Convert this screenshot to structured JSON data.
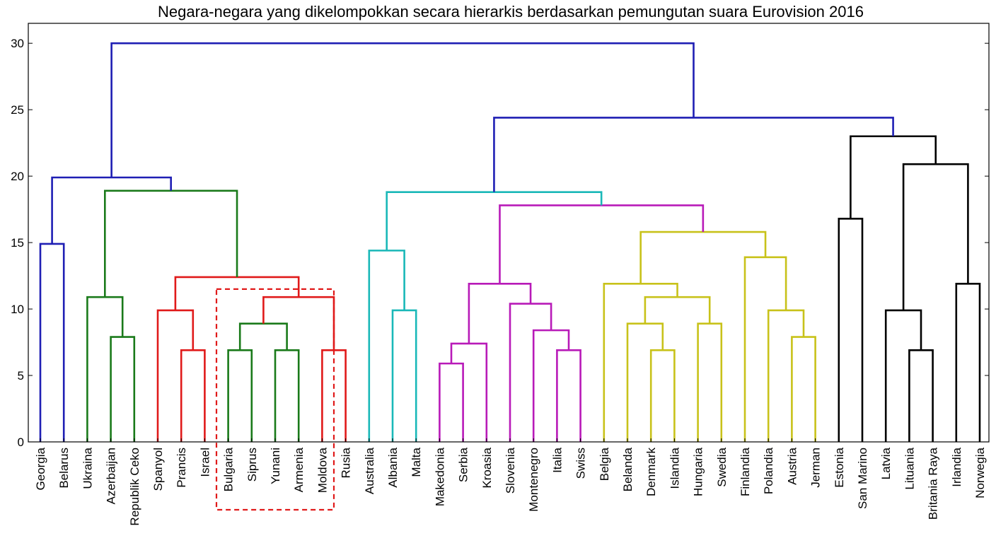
{
  "chart_data": {
    "type": "dendrogram",
    "title": "Negara-negara yang dikelompokkan secara hierarkis berdasarkan pemungutan suara Eurovision 2016",
    "xlabel": "",
    "ylabel": "",
    "ylim": [
      0,
      31.5
    ],
    "yticks": [
      0,
      5,
      10,
      15,
      20,
      25,
      30
    ],
    "grid": false,
    "leaves": [
      "Georgia",
      "Belarus",
      "Ukraina",
      "Azerbaijan",
      "Republik Ceko",
      "Spanyol",
      "Prancis",
      "Israel",
      "Bulgaria",
      "Siprus",
      "Yunani",
      "Armenia",
      "Moldova",
      "Rusia",
      "Australia",
      "Albania",
      "Malta",
      "Makedonia",
      "Serbia",
      "Kroasia",
      "Slovenia",
      "Montenegro",
      "Italia",
      "Swiss",
      "Belgia",
      "Belanda",
      "Denmark",
      "Islandia",
      "Hungaria",
      "Swedia",
      "Finlandia",
      "Polandia",
      "Austria",
      "Jerman",
      "Estonia",
      "San Marino",
      "Latvia",
      "Lituania",
      "Britania Raya",
      "Irlandia",
      "Norwegia"
    ],
    "merges": [
      {
        "a": "Georgia",
        "b": "Belarus",
        "height": 14.9,
        "color": "#1f1fb4"
      },
      {
        "a": "Azerbaijan",
        "b": "Republik Ceko",
        "height": 7.9,
        "color": "#1a7a1a"
      },
      {
        "a": "Ukraina",
        "b": 1,
        "height": 10.9,
        "color": "#1a7a1a"
      },
      {
        "a": "Prancis",
        "b": "Israel",
        "height": 6.9,
        "color": "#e01a1a"
      },
      {
        "a": "Spanyol",
        "b": 3,
        "height": 9.9,
        "color": "#e01a1a"
      },
      {
        "a": "Bulgaria",
        "b": "Siprus",
        "height": 6.9,
        "color": "#1a7a1a"
      },
      {
        "a": "Yunani",
        "b": "Armenia",
        "height": 6.9,
        "color": "#1a7a1a"
      },
      {
        "a": 5,
        "b": 6,
        "height": 8.9,
        "color": "#1a7a1a"
      },
      {
        "a": "Moldova",
        "b": "Rusia",
        "height": 6.9,
        "color": "#e01a1a"
      },
      {
        "a": 7,
        "b": 8,
        "height": 10.9,
        "color": "#e01a1a"
      },
      {
        "a": 4,
        "b": 9,
        "height": 12.4,
        "color": "#e01a1a"
      },
      {
        "a": 2,
        "b": 10,
        "height": 18.9,
        "color": "#1a7a1a"
      },
      {
        "a": 0,
        "b": 11,
        "height": 19.9,
        "color": "#1f1fb4"
      },
      {
        "a": "Albania",
        "b": "Malta",
        "height": 9.9,
        "color": "#1ab8b8"
      },
      {
        "a": "Australia",
        "b": 13,
        "height": 14.4,
        "color": "#1ab8b8"
      },
      {
        "a": "Makedonia",
        "b": "Serbia",
        "height": 5.9,
        "color": "#b81ab8"
      },
      {
        "a": 15,
        "b": "Kroasia",
        "height": 7.4,
        "color": "#b81ab8"
      },
      {
        "a": "Italia",
        "b": "Swiss",
        "height": 6.9,
        "color": "#b81ab8"
      },
      {
        "a": "Montenegro",
        "b": 17,
        "height": 8.4,
        "color": "#b81ab8"
      },
      {
        "a": "Slovenia",
        "b": 18,
        "height": 10.4,
        "color": "#b81ab8"
      },
      {
        "a": 16,
        "b": 19,
        "height": 11.9,
        "color": "#b81ab8"
      },
      {
        "a": "Denmark",
        "b": "Islandia",
        "height": 6.9,
        "color": "#c8c21a"
      },
      {
        "a": "Belanda",
        "b": 21,
        "height": 8.9,
        "color": "#c8c21a"
      },
      {
        "a": "Hungaria",
        "b": "Swedia",
        "height": 8.9,
        "color": "#c8c21a"
      },
      {
        "a": 22,
        "b": 23,
        "height": 10.9,
        "color": "#c8c21a"
      },
      {
        "a": "Belgia",
        "b": 24,
        "height": 11.9,
        "color": "#c8c21a"
      },
      {
        "a": "Austria",
        "b": "Jerman",
        "height": 7.9,
        "color": "#c8c21a"
      },
      {
        "a": "Polandia",
        "b": 26,
        "height": 9.9,
        "color": "#c8c21a"
      },
      {
        "a": "Finlandia",
        "b": 27,
        "height": 13.9,
        "color": "#c8c21a"
      },
      {
        "a": 25,
        "b": 28,
        "height": 15.8,
        "color": "#c8c21a"
      },
      {
        "a": 20,
        "b": 29,
        "height": 17.8,
        "color": "#b81ab8"
      },
      {
        "a": 14,
        "b": 30,
        "height": 18.8,
        "color": "#1ab8b8"
      },
      {
        "a": "Estonia",
        "b": "San Marino",
        "height": 16.8,
        "color": "#000000"
      },
      {
        "a": "Lituania",
        "b": "Britania Raya",
        "height": 6.9,
        "color": "#000000"
      },
      {
        "a": "Latvia",
        "b": 33,
        "height": 9.9,
        "color": "#000000"
      },
      {
        "a": "Irlandia",
        "b": "Norwegia",
        "height": 11.9,
        "color": "#000000"
      },
      {
        "a": 34,
        "b": 35,
        "height": 20.9,
        "color": "#000000"
      },
      {
        "a": 32,
        "b": 36,
        "height": 23.0,
        "color": "#000000"
      },
      {
        "a": 31,
        "b": 37,
        "height": 24.4,
        "color": "#1f1fb4"
      },
      {
        "a": 12,
        "b": 38,
        "height": 30.0,
        "color": "#1f1fb4"
      }
    ],
    "annotation": {
      "type": "dashed-box",
      "first_leaf": "Bulgaria",
      "last_leaf": "Moldova",
      "top": 11.5,
      "color": "#e01a1a"
    }
  }
}
